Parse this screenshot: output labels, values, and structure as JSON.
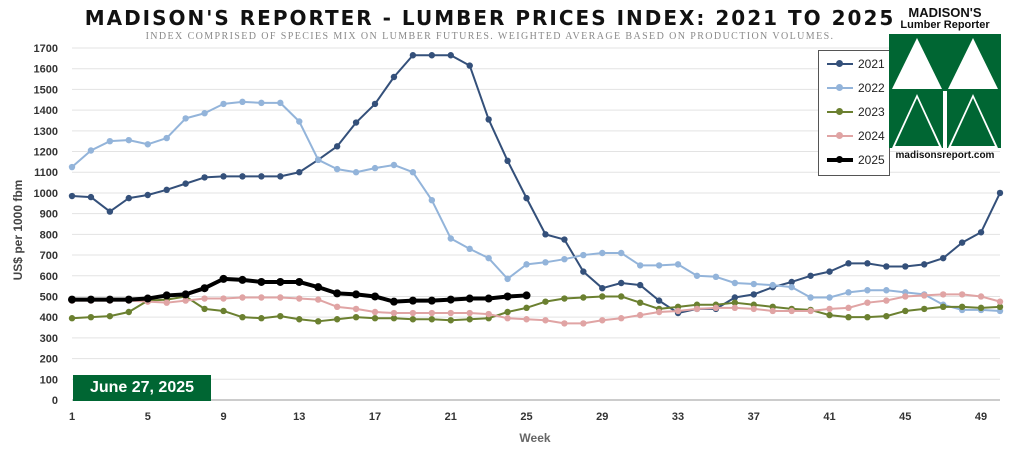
{
  "header": {
    "title": "MADISON'S REPORTER - LUMBER PRICES INDEX: 2021 TO 2025",
    "subtitle": "INDEX COMPRISED OF SPECIES MIX ON LUMBER FUTURES. WEIGHTED AVERAGE BASED ON PRODUCTION VOLUMES."
  },
  "badge": {
    "date": "June 27, 2025"
  },
  "logo": {
    "name": "MADISON'S",
    "tagline": "Lumber Reporter",
    "url": "madisonsreport.com",
    "color": "#006633"
  },
  "chart_data": {
    "type": "line",
    "xlabel": "Week",
    "ylabel": "US$ per 1000 fbm",
    "xlim": [
      1,
      50
    ],
    "ylim": [
      0,
      1700
    ],
    "x_ticks": [
      1,
      5,
      9,
      13,
      17,
      21,
      25,
      29,
      33,
      37,
      41,
      45,
      49
    ],
    "y_ticks": [
      0,
      100,
      200,
      300,
      400,
      500,
      600,
      700,
      800,
      900,
      1000,
      1100,
      1200,
      1300,
      1400,
      1500,
      1600,
      1700
    ],
    "grid": true,
    "legend_position": "top-right",
    "series": [
      {
        "name": "2021",
        "color": "#34507a",
        "width": 2,
        "values": [
          985,
          980,
          910,
          975,
          990,
          1015,
          1045,
          1075,
          1080,
          1080,
          1080,
          1080,
          1100,
          1160,
          1225,
          1340,
          1430,
          1560,
          1665,
          1665,
          1665,
          1615,
          1355,
          1155,
          975,
          800,
          775,
          620,
          540,
          565,
          555,
          480,
          420,
          440,
          440,
          495,
          510,
          545,
          570,
          600,
          620,
          660,
          660,
          645,
          645,
          655,
          685,
          760,
          810,
          1000
        ]
      },
      {
        "name": "2022",
        "color": "#93b4da",
        "width": 2,
        "values": [
          1125,
          1205,
          1250,
          1255,
          1235,
          1265,
          1360,
          1385,
          1430,
          1440,
          1435,
          1435,
          1345,
          1160,
          1115,
          1100,
          1120,
          1135,
          1100,
          965,
          780,
          730,
          685,
          585,
          655,
          665,
          680,
          700,
          710,
          710,
          650,
          650,
          655,
          600,
          595,
          565,
          560,
          555,
          545,
          495,
          495,
          520,
          530,
          530,
          520,
          510,
          460,
          435,
          435,
          430
        ]
      },
      {
        "name": "2023",
        "color": "#6b8030",
        "width": 2,
        "values": [
          395,
          400,
          405,
          425,
          480,
          485,
          500,
          440,
          430,
          400,
          395,
          405,
          390,
          380,
          390,
          400,
          395,
          395,
          390,
          390,
          385,
          390,
          395,
          425,
          445,
          475,
          490,
          495,
          500,
          500,
          470,
          440,
          450,
          460,
          460,
          470,
          460,
          450,
          440,
          435,
          410,
          400,
          400,
          405,
          430,
          440,
          450,
          450,
          445,
          450
        ]
      },
      {
        "name": "2024",
        "color": "#e0a4a4",
        "width": 2,
        "values": [
          480,
          480,
          480,
          480,
          475,
          470,
          480,
          490,
          490,
          495,
          495,
          495,
          490,
          485,
          450,
          440,
          425,
          420,
          420,
          420,
          420,
          420,
          415,
          395,
          390,
          385,
          370,
          370,
          385,
          395,
          410,
          425,
          430,
          440,
          445,
          445,
          440,
          430,
          430,
          430,
          440,
          445,
          470,
          480,
          500,
          505,
          510,
          510,
          500,
          475
        ]
      },
      {
        "name": "2025",
        "color": "#000000",
        "width": 4,
        "values": [
          485,
          485,
          485,
          485,
          490,
          505,
          510,
          540,
          585,
          580,
          570,
          570,
          570,
          545,
          515,
          510,
          500,
          475,
          480,
          480,
          485,
          490,
          490,
          500,
          505
        ]
      }
    ]
  }
}
